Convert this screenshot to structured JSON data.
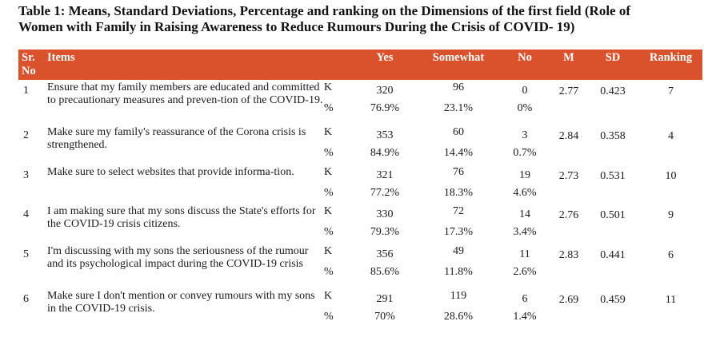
{
  "caption": {
    "line1": "Table 1: Means, Standard Deviations, Percentage and ranking on the Dimensions of the first field (Role of",
    "line2": "Women with Family in Raising Awareness to Reduce Rumours During the Crisis of COVID- 19)"
  },
  "header": {
    "no_line1": "Sr.",
    "no_line2": "No",
    "items": "Items",
    "yes": "Yes",
    "somewhat": "Somewhat",
    "no": "No",
    "m": "M",
    "sd": "SD",
    "ranking": "Ranking"
  },
  "colors": {
    "header_bg": "#d9522b",
    "header_text": "#ffffff"
  },
  "rows": [
    {
      "sr": "1",
      "item": "Ensure that my family members are educated and committed to precautionary measures and preven-tion of the COVID-19.",
      "k_label": "K",
      "pct_label": "%",
      "yes_k": "320",
      "yes_pct": "76.9%",
      "some_k": "96",
      "some_pct": "23.1%",
      "no_k": "0",
      "no_pct": "0%",
      "m": "2.77",
      "sd": "0.423",
      "rank": "7"
    },
    {
      "sr": "2",
      "item": "Make sure my family's reassurance of the Corona crisis is strengthened.",
      "k_label": "K",
      "pct_label": "%",
      "yes_k": "353",
      "yes_pct": "84.9%",
      "some_k": "60",
      "some_pct": "14.4%",
      "no_k": "3",
      "no_pct": "0.7%",
      "m": "2.84",
      "sd": "0.358",
      "rank": "4"
    },
    {
      "sr": "3",
      "item": "Make sure to select websites that provide informa-tion.",
      "k_label": "K",
      "pct_label": "%",
      "yes_k": "321",
      "yes_pct": "77.2%",
      "some_k": "76",
      "some_pct": "18.3%",
      "no_k": "19",
      "no_pct": "4.6%",
      "m": "2.73",
      "sd": "0.531",
      "rank": "10"
    },
    {
      "sr": "4",
      "item": "I am making sure that my sons discuss the State's efforts for the COVID-19 crisis citizens.",
      "k_label": "K",
      "pct_label": "%",
      "yes_k": "330",
      "yes_pct": "79.3%",
      "some_k": "72",
      "some_pct": "17.3%",
      "no_k": "14",
      "no_pct": "3.4%",
      "m": "2.76",
      "sd": "0.501",
      "rank": "9"
    },
    {
      "sr": "5",
      "item": "I'm discussing with my sons the seriousness of the rumour and its psychological impact during the COVID-19 crisis",
      "k_label": "K",
      "pct_label": "%",
      "yes_k": "356",
      "yes_pct": "85.6%",
      "some_k": "49",
      "some_pct": "11.8%",
      "no_k": "11",
      "no_pct": "2.6%",
      "m": "2.83",
      "sd": "0.441",
      "rank": "6"
    },
    {
      "sr": "6",
      "item": "Make sure I don't mention or convey rumours with my sons in the COVID-19 crisis.",
      "k_label": "K",
      "pct_label": "%",
      "yes_k": "291",
      "yes_pct": "70%",
      "some_k": "119",
      "some_pct": "28.6%",
      "no_k": "6",
      "no_pct": "1.4%",
      "m": "2.69",
      "sd": "0.459",
      "rank": "11"
    }
  ]
}
